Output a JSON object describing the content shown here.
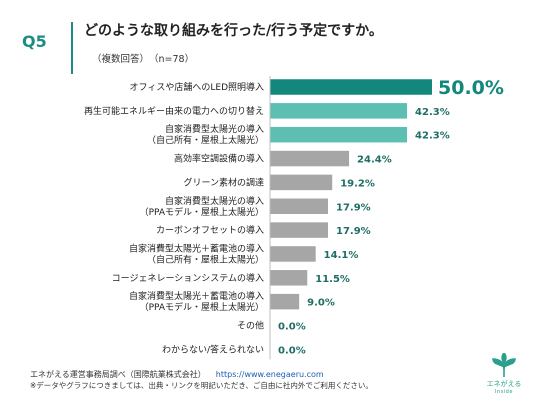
{
  "header": {
    "q_number": "Q5",
    "question": "どのような取り組みを行った/行う予定ですか。",
    "subtitle": "（複数回答）　（n=78）"
  },
  "chart_data": {
    "type": "bar",
    "orientation": "horizontal",
    "categories": [
      [
        "オフィスや店舗へのLED照明導入"
      ],
      [
        "再生可能エネルギー由来の電力への切り替え"
      ],
      [
        "自家消費型太陽光の導入",
        "（自己所有・屋根上太陽光）"
      ],
      [
        "高効率空調設備の導入"
      ],
      [
        "グリーン素材の調達"
      ],
      [
        "自家消費型太陽光の導入",
        "（PPAモデル・屋根上太陽光）"
      ],
      [
        "カーボンオフセットの導入"
      ],
      [
        "自家消費型太陽光＋蓄電池の導入",
        "（自己所有・屋根上太陽光）"
      ],
      [
        "コージェネレーションシステムの導入"
      ],
      [
        "自家消費型太陽光＋蓄電池の導入",
        "（PPAモデル・屋根上太陽光）"
      ],
      [
        "その他"
      ],
      [
        "わからない/答えられない"
      ]
    ],
    "values": [
      50.0,
      42.3,
      42.3,
      24.4,
      19.2,
      17.9,
      17.9,
      14.1,
      11.5,
      9.0,
      0.0,
      0.0
    ],
    "value_labels": [
      "50.0%",
      "42.3%",
      "42.3%",
      "24.4%",
      "19.2%",
      "17.9%",
      "17.9%",
      "14.1%",
      "11.5%",
      "9.0%",
      "0.0%",
      "0.0%"
    ],
    "xlim": [
      0,
      60
    ],
    "colors": {
      "top": "#12877b",
      "high": "#5cbfb2",
      "rest": "#a6a6a6",
      "label_accent": "#12877b",
      "label_normal": "#1f6e66"
    }
  },
  "footer": {
    "source": "エネがえる運営事務局調べ（国際航業株式会社）",
    "url": "https://www.enegaeru.com",
    "note": "※データやグラフにつきましては、出典・リンクを明記いただき、ご自由に社内外でご利用ください。"
  },
  "logo": {
    "name": "エネがえる",
    "sub": "Inside",
    "color": "#2aa08c",
    "icon": "leaf-tree-logo-icon"
  }
}
